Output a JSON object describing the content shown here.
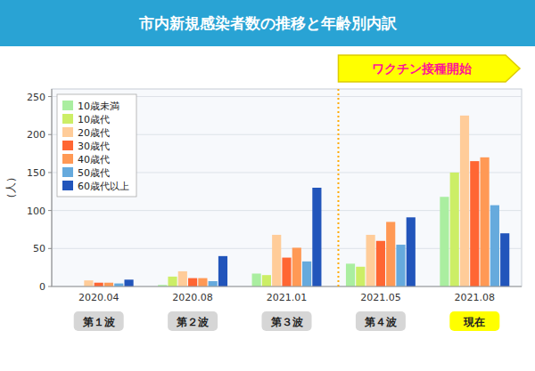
{
  "chart_data": {
    "type": "bar",
    "title": "市内新規感染者数の推移と年齢別内訳",
    "y_label": "（人）",
    "categories": [
      "2020.04",
      "2020.08",
      "2021.01",
      "2021.05",
      "2021.08"
    ],
    "series": [
      {
        "name": "10歳未満",
        "color": "#aaeea0",
        "values": [
          0,
          2,
          17,
          30,
          118
        ]
      },
      {
        "name": "10歳代",
        "color": "#ccee66",
        "values": [
          0,
          13,
          15,
          26,
          150
        ]
      },
      {
        "name": "20歳代",
        "color": "#ffcc99",
        "values": [
          8,
          20,
          68,
          68,
          225
        ]
      },
      {
        "name": "30歳代",
        "color": "#ff6633",
        "values": [
          5,
          11,
          38,
          60,
          165
        ]
      },
      {
        "name": "40歳代",
        "color": "#ff9955",
        "values": [
          5,
          11,
          51,
          85,
          170
        ]
      },
      {
        "name": "50歳代",
        "color": "#66aadd",
        "values": [
          4,
          7,
          33,
          55,
          107
        ]
      },
      {
        "name": "60歳代以上",
        "color": "#2255bb",
        "values": [
          9,
          40,
          130,
          91,
          70
        ]
      }
    ],
    "annotations": [
      "第１波",
      "第２波",
      "第３波",
      "第４波",
      "現在",
      "ワクチン接種開始"
    ],
    "ylim": [
      0,
      260
    ],
    "yticks": [
      0,
      50,
      100,
      150,
      200,
      250
    ],
    "grid": true,
    "legend": "upper left"
  }
}
